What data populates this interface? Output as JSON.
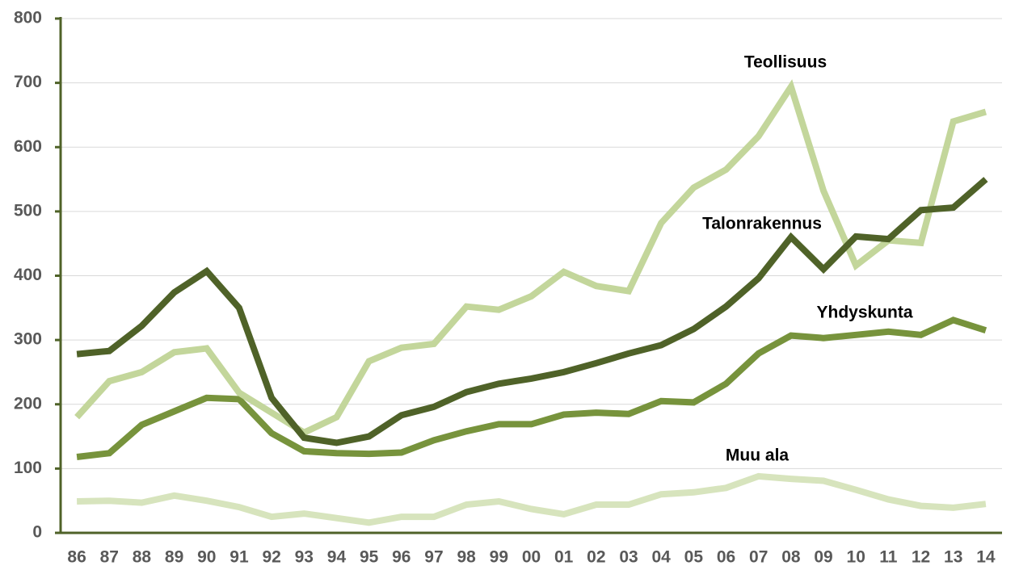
{
  "chart_data": {
    "type": "line",
    "categories": [
      "86",
      "87",
      "88",
      "89",
      "90",
      "91",
      "92",
      "93",
      "94",
      "95",
      "96",
      "97",
      "98",
      "99",
      "00",
      "01",
      "02",
      "03",
      "04",
      "05",
      "06",
      "07",
      "08",
      "09",
      "10",
      "11",
      "12",
      "13",
      "14"
    ],
    "series": [
      {
        "name": "Teollisuus",
        "color": "#c3d69b",
        "values": [
          180,
          236,
          250,
          281,
          287,
          218,
          187,
          156,
          180,
          267,
          288,
          294,
          352,
          347,
          368,
          406,
          384,
          376,
          482,
          537,
          565,
          617,
          694,
          532,
          416,
          455,
          451,
          640,
          655
        ]
      },
      {
        "name": "Talonrakennus",
        "color": "#4f6228",
        "values": [
          278,
          283,
          322,
          374,
          407,
          350,
          210,
          148,
          140,
          150,
          183,
          196,
          219,
          232,
          240,
          250,
          264,
          279,
          292,
          317,
          352,
          396,
          460,
          410,
          461,
          457,
          502,
          506,
          550
        ]
      },
      {
        "name": "Yhdyskunta",
        "color": "#77933c",
        "values": [
          118,
          124,
          168,
          189,
          210,
          208,
          155,
          127,
          124,
          123,
          125,
          144,
          158,
          169,
          169,
          184,
          187,
          185,
          205,
          203,
          232,
          279,
          307,
          303,
          308,
          313,
          308,
          331,
          315
        ]
      },
      {
        "name": "Muu ala",
        "color": "#d7e4bd",
        "values": [
          49,
          50,
          47,
          58,
          50,
          40,
          25,
          30,
          23,
          16,
          25,
          25,
          44,
          49,
          37,
          29,
          44,
          44,
          60,
          63,
          70,
          88,
          84,
          81,
          67,
          52,
          42,
          39,
          45
        ]
      }
    ],
    "ylim": [
      0,
      800
    ],
    "yticks": [
      0,
      100,
      200,
      300,
      400,
      500,
      600,
      700,
      800
    ],
    "grid": true
  }
}
